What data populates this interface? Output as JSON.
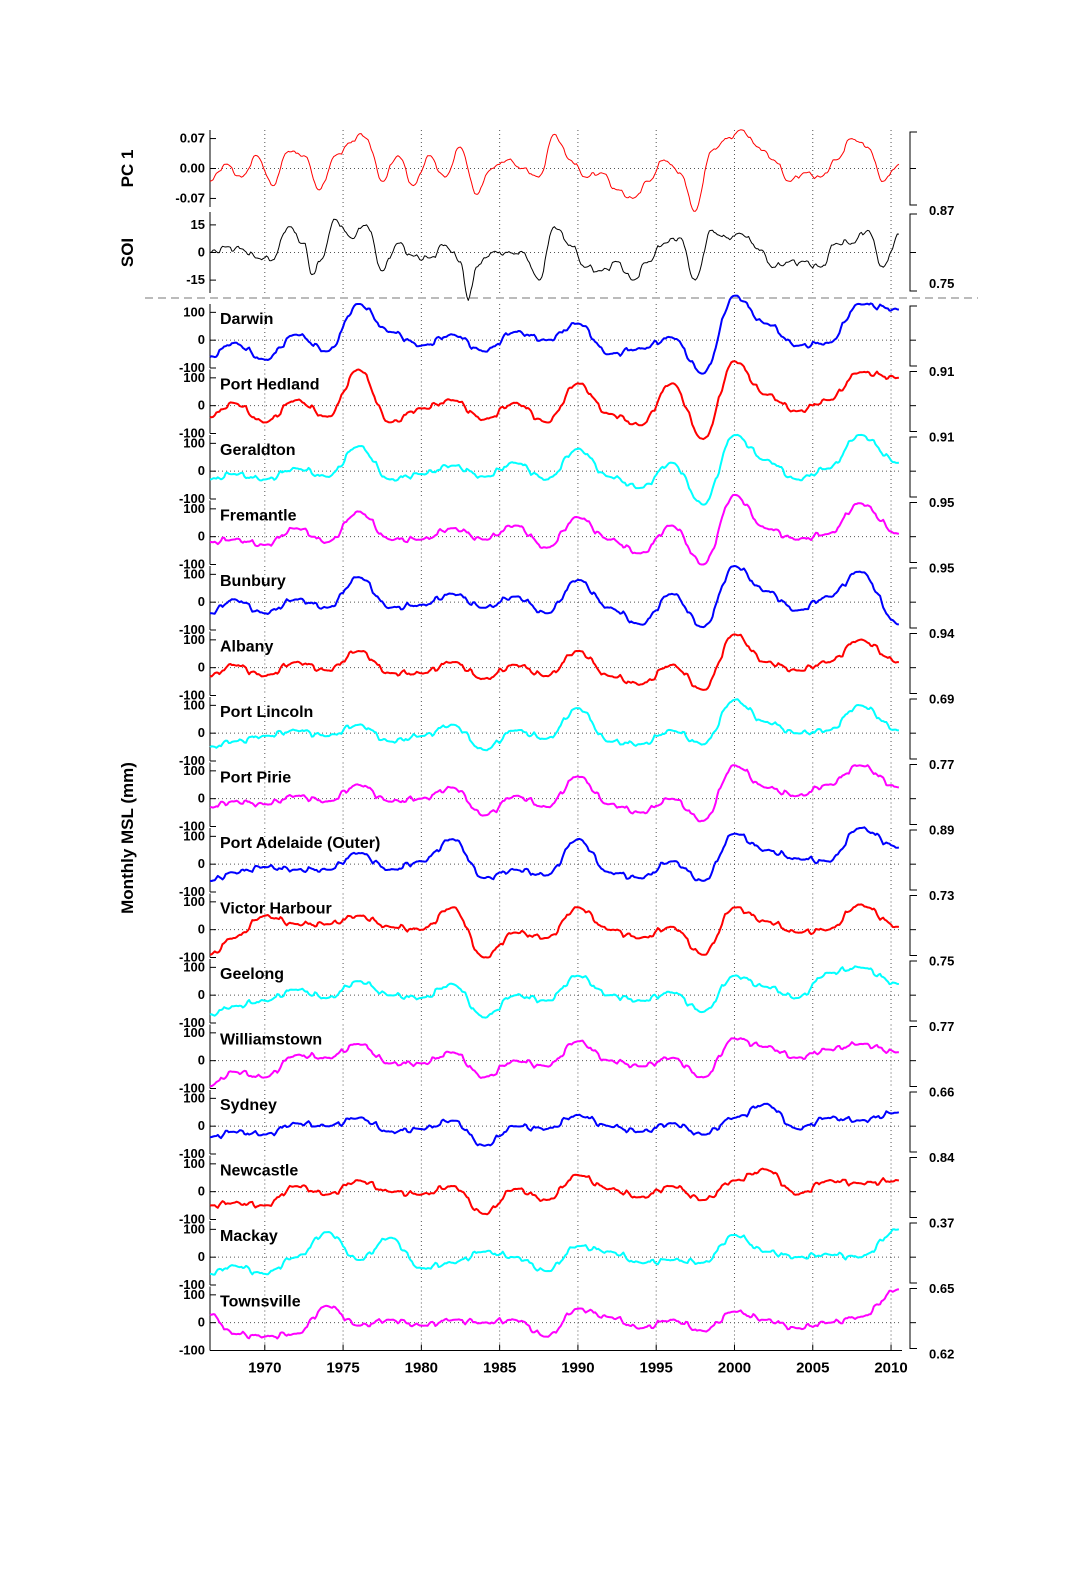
{
  "chart_data": {
    "type": "line",
    "ylabel": "Monthly MSL (mm)",
    "xlim": [
      1966.5,
      2010.7
    ],
    "x_ticks": [
      1970,
      1975,
      1980,
      1985,
      1990,
      1995,
      2000,
      2005,
      2010
    ],
    "x_tick_labels": [
      "1970",
      "1975",
      "1980",
      "1985",
      "1990",
      "1995",
      "2000",
      "2005",
      "2010"
    ],
    "grid": "dotted vertical lines at x ticks, dotted zero line in each panel",
    "top_panels": [
      {
        "label": "PC 1",
        "color": "#ff0000",
        "ylim": [
          -0.09,
          0.09
        ],
        "yticks": [
          -0.07,
          0.0,
          0.07
        ],
        "ytick_labels": [
          "-0.07",
          "0.00",
          "0.07"
        ],
        "x": [
          1966.5,
          1967.5,
          1968.5,
          1969.5,
          1970.5,
          1971.5,
          1972.5,
          1973.5,
          1974.5,
          1975.5,
          1976,
          1976.5,
          1977.5,
          1978.5,
          1979.5,
          1980.5,
          1981.5,
          1982.5,
          1983.5,
          1984.5,
          1985.5,
          1986.5,
          1987.5,
          1988.5,
          1989.5,
          1990.5,
          1991.5,
          1992.5,
          1993.5,
          1994.5,
          1995.5,
          1996.5,
          1997.5,
          1998.5,
          1999.5,
          2000.5,
          2001.5,
          2002.5,
          2003.5,
          2004.5,
          2005.5,
          2006.5,
          2007.5,
          2008.5,
          2009.5,
          2010.5
        ],
        "values": [
          -0.03,
          0.01,
          -0.02,
          0.03,
          -0.04,
          0.04,
          0.03,
          -0.05,
          0.03,
          0.06,
          0.08,
          0.07,
          -0.03,
          0.03,
          -0.04,
          0.03,
          -0.02,
          0.05,
          -0.06,
          0.0,
          0.02,
          0.0,
          -0.02,
          0.08,
          0.02,
          -0.02,
          -0.01,
          -0.05,
          -0.07,
          -0.03,
          0.02,
          -0.01,
          -0.1,
          0.04,
          0.07,
          0.09,
          0.05,
          0.02,
          -0.03,
          -0.01,
          -0.02,
          0.02,
          0.07,
          0.05,
          -0.03,
          0.01
        ]
      },
      {
        "label": "SOI",
        "color": "#000000",
        "ylim": [
          -22,
          22
        ],
        "yticks": [
          -15,
          0,
          15
        ],
        "ytick_labels": [
          "-15",
          "0",
          "15"
        ],
        "x": [
          1966.5,
          1967.5,
          1968.5,
          1969.5,
          1970.5,
          1971.5,
          1972.5,
          1973,
          1973.5,
          1974.5,
          1975.5,
          1976.5,
          1977.5,
          1978.5,
          1979.5,
          1980.5,
          1981.5,
          1982.5,
          1983,
          1983.5,
          1984.5,
          1985.5,
          1986.5,
          1987.5,
          1988.5,
          1989.5,
          1990.5,
          1991.5,
          1992.5,
          1993.5,
          1994.5,
          1995.5,
          1996.5,
          1997.5,
          1998.5,
          1999.5,
          2000.5,
          2001.5,
          2002.5,
          2003.5,
          2004.5,
          2005.5,
          2006.5,
          2007.5,
          2008.5,
          2009.5,
          2010.5
        ],
        "values": [
          0,
          3,
          2,
          -3,
          -4,
          14,
          5,
          -12,
          -5,
          18,
          8,
          15,
          -10,
          5,
          -2,
          -3,
          4,
          -5,
          -26,
          -8,
          0,
          0,
          0,
          -15,
          14,
          4,
          -8,
          -10,
          -5,
          -15,
          -5,
          5,
          8,
          -15,
          12,
          8,
          10,
          2,
          -8,
          -5,
          -5,
          -8,
          5,
          5,
          12,
          -8,
          10
        ]
      }
    ],
    "correlations_top": [
      "0.87",
      "0.75"
    ],
    "stations_ylim": [
      -100,
      130
    ],
    "stations_yticks": [
      -100,
      0,
      100
    ],
    "stations_ytick_labels": [
      "-100",
      "0",
      "100"
    ],
    "x": [
      1966.5,
      1968,
      1970,
      1972,
      1974,
      1976,
      1978,
      1980,
      1982,
      1984,
      1986,
      1988,
      1990,
      1992,
      1994,
      1996,
      1998,
      2000,
      2002,
      2004,
      2006,
      2008,
      2010.5
    ],
    "series": [
      {
        "name": "Darwin",
        "color": "#0000ff",
        "correlation": "0.91",
        "values": [
          -60,
          -10,
          -70,
          20,
          -40,
          130,
          30,
          -20,
          20,
          -40,
          30,
          0,
          60,
          -50,
          -30,
          10,
          -120,
          160,
          60,
          -20,
          -10,
          130,
          110
        ]
      },
      {
        "name": "Port Hedland",
        "color": "#ff0000",
        "correlation": "0.91",
        "values": [
          -40,
          10,
          -60,
          20,
          -40,
          130,
          -60,
          -10,
          20,
          -50,
          10,
          -60,
          80,
          -30,
          -70,
          80,
          -120,
          160,
          40,
          -20,
          20,
          120,
          100
        ]
      },
      {
        "name": "Geraldton",
        "color": "#00ffff",
        "correlation": "0.95",
        "values": [
          -30,
          -10,
          -30,
          10,
          -20,
          90,
          -30,
          -10,
          20,
          -20,
          30,
          -30,
          80,
          -20,
          -60,
          30,
          -120,
          130,
          40,
          -30,
          10,
          130,
          30
        ]
      },
      {
        "name": "Fremantle",
        "color": "#ff00ff",
        "correlation": "0.95",
        "values": [
          -20,
          -10,
          -30,
          30,
          -20,
          90,
          -10,
          -10,
          30,
          -10,
          40,
          -40,
          70,
          -10,
          -60,
          40,
          -100,
          150,
          30,
          -10,
          10,
          120,
          10
        ]
      },
      {
        "name": "Bunbury",
        "color": "#0000ff",
        "correlation": "0.94",
        "values": [
          -40,
          10,
          -40,
          10,
          -20,
          90,
          -20,
          -10,
          30,
          -20,
          20,
          -40,
          80,
          -20,
          -80,
          30,
          -90,
          130,
          40,
          -30,
          20,
          110,
          -80
        ]
      },
      {
        "name": "Albany",
        "color": "#ff0000",
        "correlation": "0.69",
        "values": [
          -30,
          10,
          -30,
          20,
          -10,
          60,
          -20,
          -20,
          20,
          -40,
          10,
          -30,
          60,
          -30,
          -60,
          10,
          -80,
          120,
          20,
          -10,
          20,
          100,
          20
        ]
      },
      {
        "name": "Port Lincoln",
        "color": "#00ffff",
        "correlation": "0.77",
        "values": [
          -50,
          -30,
          -10,
          10,
          -10,
          30,
          -30,
          -10,
          30,
          -60,
          10,
          -20,
          90,
          -30,
          -40,
          10,
          -40,
          120,
          40,
          0,
          10,
          100,
          10
        ]
      },
      {
        "name": "Port Pirie",
        "color": "#ff00ff",
        "correlation": "0.89",
        "values": [
          -30,
          -10,
          -20,
          10,
          -10,
          50,
          -10,
          0,
          40,
          -60,
          10,
          -30,
          80,
          -20,
          -50,
          0,
          -80,
          120,
          40,
          10,
          50,
          120,
          40
        ]
      },
      {
        "name": "Port Adelaide (Outer)",
        "color": "#0000ff",
        "correlation": "0.73",
        "values": [
          -60,
          -30,
          -10,
          -20,
          -20,
          40,
          -20,
          10,
          90,
          -50,
          -20,
          -40,
          90,
          -30,
          -50,
          10,
          -60,
          110,
          50,
          20,
          10,
          130,
          60
        ]
      },
      {
        "name": "Victor Harbour",
        "color": "#ff0000",
        "correlation": "0.75",
        "values": [
          -90,
          -30,
          50,
          20,
          20,
          50,
          10,
          0,
          80,
          -100,
          -10,
          -30,
          80,
          0,
          -30,
          10,
          -90,
          80,
          30,
          -10,
          0,
          90,
          10
        ]
      },
      {
        "name": "Geelong",
        "color": "#00ffff",
        "correlation": "0.77",
        "values": [
          -70,
          -40,
          -20,
          20,
          -10,
          50,
          0,
          -10,
          40,
          -80,
          0,
          -20,
          70,
          0,
          -20,
          10,
          -60,
          70,
          30,
          -10,
          80,
          100,
          40
        ]
      },
      {
        "name": "Williamstown",
        "color": "#ff00ff",
        "correlation": "0.66",
        "values": [
          -90,
          -40,
          -60,
          20,
          10,
          60,
          -10,
          -10,
          30,
          -60,
          0,
          -20,
          70,
          0,
          -20,
          10,
          -60,
          80,
          50,
          10,
          40,
          60,
          30
        ]
      },
      {
        "name": "Sydney",
        "color": "#0000ff",
        "correlation": "0.84",
        "values": [
          -40,
          -20,
          -30,
          10,
          0,
          30,
          -20,
          -10,
          20,
          -70,
          0,
          -10,
          40,
          0,
          -20,
          10,
          -30,
          30,
          80,
          -10,
          30,
          20,
          50
        ]
      },
      {
        "name": "Newcastle",
        "color": "#ff0000",
        "correlation": "0.37",
        "values": [
          -50,
          -40,
          -50,
          20,
          -10,
          40,
          0,
          -10,
          20,
          -80,
          10,
          -30,
          60,
          10,
          -20,
          20,
          -30,
          40,
          80,
          -10,
          40,
          30,
          40
        ]
      },
      {
        "name": "Mackay",
        "color": "#00ffff",
        "correlation": "0.65",
        "values": [
          -60,
          -30,
          -60,
          0,
          90,
          -10,
          70,
          -40,
          -20,
          20,
          0,
          -50,
          40,
          20,
          -20,
          -10,
          -20,
          80,
          20,
          0,
          10,
          0,
          100
        ]
      },
      {
        "name": "Townsville",
        "color": "#ff00ff",
        "correlation": "0.62",
        "values": [
          30,
          -40,
          -50,
          -40,
          60,
          -10,
          10,
          -10,
          10,
          0,
          10,
          -50,
          50,
          20,
          -20,
          10,
          -30,
          40,
          10,
          -20,
          0,
          20,
          120
        ]
      }
    ]
  }
}
